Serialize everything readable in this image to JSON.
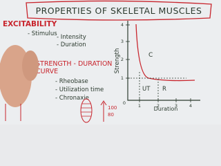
{
  "header": {
    "title": "PROPERTIES OF SKELETAL MUSCLES"
  },
  "notes": {
    "heading1": "EXCITABILITY",
    "stimulus": "- Stimulus",
    "intensity": "- Intensity",
    "duration": "- Duration",
    "heading2": "STRENGTH - DURATION",
    "heading2b": "CURVE",
    "items": [
      "- Rheobase",
      "- Utilization time",
      "- Chronaxie"
    ]
  },
  "graph": {
    "y_label": "Strength",
    "x_label": "Duration",
    "y_ticks": [
      "1",
      "2",
      "3",
      "4"
    ],
    "x_ticks": [
      "1",
      "2",
      "3",
      "4"
    ],
    "origin": "0",
    "regions": [
      "C",
      "UT",
      "R"
    ]
  },
  "corner": [
    "100",
    "80"
  ]
}
